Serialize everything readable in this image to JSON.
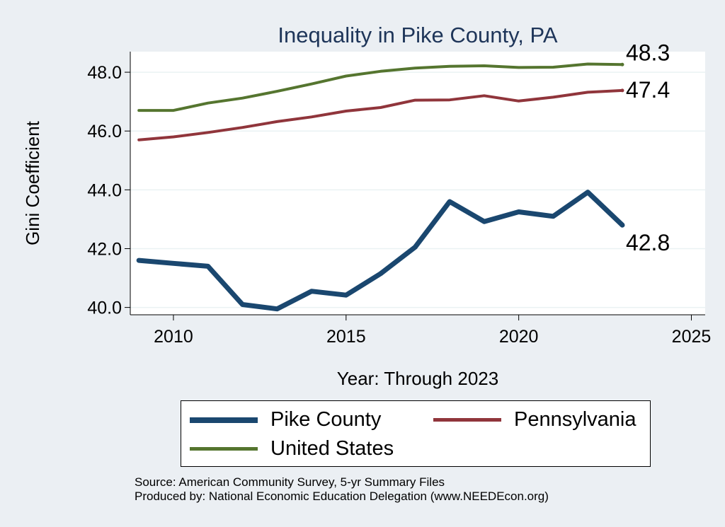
{
  "chart_data": {
    "type": "line",
    "title": "Inequality in Pike County, PA",
    "xlabel": "Year: Through 2023",
    "ylabel": "Gini Coefficient",
    "xlim": [
      2008.75,
      2025.4
    ],
    "ylim": [
      39.75,
      48.7
    ],
    "x_ticks": [
      2010,
      2015,
      2020,
      2025
    ],
    "y_ticks": [
      40.0,
      42.0,
      44.0,
      46.0,
      48.0
    ],
    "y_tick_labels": [
      "40.0",
      "42.0",
      "44.0",
      "46.0",
      "48.0"
    ],
    "grid": true,
    "legend_position": "bottom",
    "x": [
      2009,
      2010,
      2011,
      2012,
      2013,
      2014,
      2015,
      2016,
      2017,
      2018,
      2019,
      2020,
      2021,
      2022,
      2023
    ],
    "series": [
      {
        "name": "Pike County",
        "color": "#1a476f",
        "width": 7,
        "end_label": "42.8",
        "values": [
          41.6,
          41.5,
          41.4,
          40.1,
          39.95,
          40.55,
          40.42,
          41.15,
          42.05,
          43.6,
          42.92,
          43.25,
          43.1,
          43.92,
          42.8
        ]
      },
      {
        "name": "Pennsylvania",
        "color": "#90353b",
        "width": 4,
        "end_label": "47.4",
        "values": [
          45.7,
          45.8,
          45.95,
          46.12,
          46.32,
          46.48,
          46.68,
          46.8,
          47.05,
          47.06,
          47.2,
          47.02,
          47.15,
          47.32,
          47.38
        ]
      },
      {
        "name": "United States",
        "color": "#55752f",
        "width": 4,
        "end_label": "48.3",
        "values": [
          46.7,
          46.7,
          46.95,
          47.12,
          47.35,
          47.6,
          47.87,
          48.03,
          48.14,
          48.2,
          48.22,
          48.16,
          48.17,
          48.28,
          48.26
        ]
      }
    ]
  },
  "source_lines": [
    "Source: American Community Survey, 5-yr Summary Files",
    "Produced by: National Economic Education Delegation (www.NEEDEcon.org)"
  ]
}
